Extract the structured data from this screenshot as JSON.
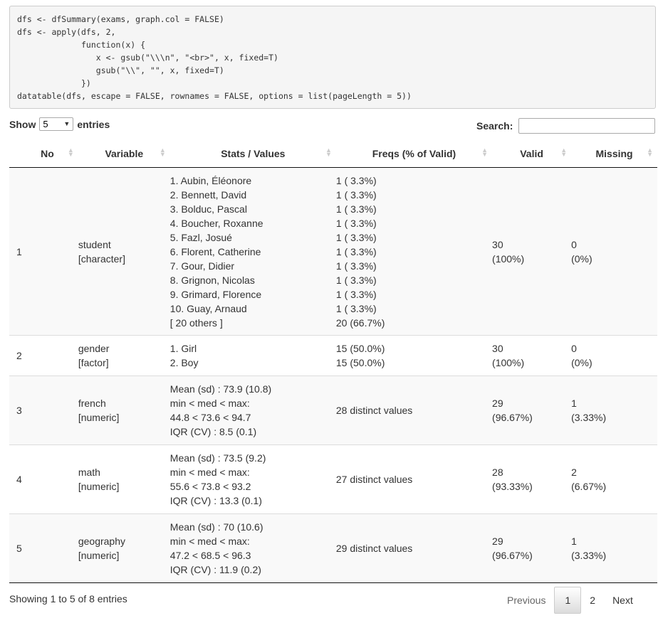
{
  "code_lines": [
    "dfs <- dfSummary(exams, graph.col = FALSE)",
    "dfs <- apply(dfs, 2,",
    "             function(x) {",
    "                x <- gsub(\"\\\\\\n\", \"<br>\", x, fixed=T)",
    "                gsub(\"\\\\\", \"\", x, fixed=T)",
    "             })",
    "datatable(dfs, escape = FALSE, rownames = FALSE, options = list(pageLength = 5))"
  ],
  "controls": {
    "show_label": "Show",
    "entries_value": "5",
    "entries_label": "entries",
    "search_label": "Search:",
    "search_value": ""
  },
  "table": {
    "headers": [
      "No",
      "Variable",
      "Stats / Values",
      "Freqs (% of Valid)",
      "Valid",
      "Missing"
    ],
    "rows": [
      {
        "no": "1",
        "variable": [
          "student",
          "[character]"
        ],
        "stats": [
          "1. Aubin, Éléonore",
          "2. Bennett, David",
          "3. Bolduc, Pascal",
          "4. Boucher, Roxanne",
          "5. Fazl, Josué",
          "6. Florent, Catherine",
          "7. Gour, Didier",
          "8. Grignon, Nicolas",
          "9. Grimard, Florence",
          "10. Guay, Arnaud",
          "[ 20 others ]"
        ],
        "freqs": [
          "1 ( 3.3%)",
          "1 ( 3.3%)",
          "1 ( 3.3%)",
          "1 ( 3.3%)",
          "1 ( 3.3%)",
          "1 ( 3.3%)",
          "1 ( 3.3%)",
          "1 ( 3.3%)",
          "1 ( 3.3%)",
          "1 ( 3.3%)",
          "20 (66.7%)"
        ],
        "valid": [
          "30",
          "(100%)"
        ],
        "missing": [
          "0",
          "(0%)"
        ]
      },
      {
        "no": "2",
        "variable": [
          "gender",
          "[factor]"
        ],
        "stats": [
          "1. Girl",
          "2. Boy"
        ],
        "freqs": [
          "15 (50.0%)",
          "15 (50.0%)"
        ],
        "valid": [
          "30",
          "(100%)"
        ],
        "missing": [
          "0",
          "(0%)"
        ]
      },
      {
        "no": "3",
        "variable": [
          "french",
          "[numeric]"
        ],
        "stats": [
          "Mean (sd) : 73.9 (10.8)",
          "min < med < max:",
          "44.8 < 73.6 < 94.7",
          "IQR (CV) : 8.5 (0.1)"
        ],
        "freqs": [
          "28 distinct values"
        ],
        "valid": [
          "29",
          "(96.67%)"
        ],
        "missing": [
          "1",
          "(3.33%)"
        ]
      },
      {
        "no": "4",
        "variable": [
          "math",
          "[numeric]"
        ],
        "stats": [
          "Mean (sd) : 73.5 (9.2)",
          "min < med < max:",
          "55.6 < 73.8 < 93.2",
          "IQR (CV) : 13.3 (0.1)"
        ],
        "freqs": [
          "27 distinct values"
        ],
        "valid": [
          "28",
          "(93.33%)"
        ],
        "missing": [
          "2",
          "(6.67%)"
        ]
      },
      {
        "no": "5",
        "variable": [
          "geography",
          "[numeric]"
        ],
        "stats": [
          "Mean (sd) : 70 (10.6)",
          "min < med < max:",
          "47.2 < 68.5 < 96.3",
          "IQR (CV) : 11.9 (0.2)"
        ],
        "freqs": [
          "29 distinct values"
        ],
        "valid": [
          "29",
          "(96.67%)"
        ],
        "missing": [
          "1",
          "(3.33%)"
        ]
      }
    ]
  },
  "footer": {
    "info": "Showing 1 to 5 of 8 entries",
    "previous": "Previous",
    "pages": [
      "1",
      "2"
    ],
    "next": "Next"
  }
}
